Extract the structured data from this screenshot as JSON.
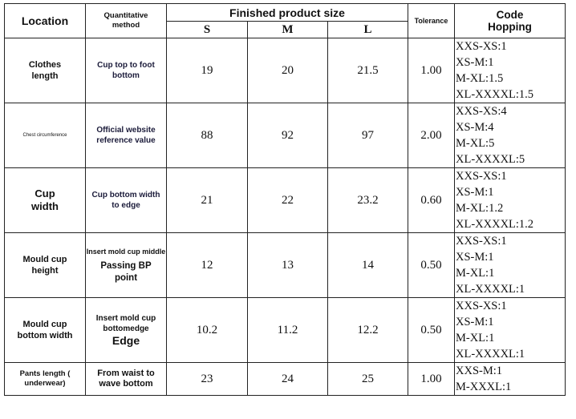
{
  "header": {
    "location": "Location",
    "method": "Quantitative\nmethod",
    "finished_product_size": "Finished product size",
    "sizes": [
      "S",
      "M",
      "L"
    ],
    "tolerance": "Tolerance",
    "code_hopping": "Code\nHopping"
  },
  "rows": [
    {
      "location": "Clothes\nlength",
      "method": "Cup top to foot\nbottom",
      "method_sub": "",
      "s": "19",
      "m": "20",
      "l": "21.5",
      "tolerance": "1.00",
      "code": [
        "XXS-XS:1",
        "XS-M:1",
        "M-XL:1.5",
        "XL-XXXXL:1.5"
      ]
    },
    {
      "location": "Chest circumference",
      "method": "Official website\nreference value",
      "method_sub": "",
      "s": "88",
      "m": "92",
      "l": "97",
      "tolerance": "2.00",
      "code": [
        "XXS-XS:4",
        "XS-M:4",
        "M-XL:5",
        "XL-XXXXL:5"
      ]
    },
    {
      "location": "Cup\nwidth",
      "method": "Cup bottom width\nto edge",
      "method_sub": "",
      "s": "21",
      "m": "22",
      "l": "23.2",
      "tolerance": "0.60",
      "code": [
        "XXS-XS:1",
        "XS-M:1",
        "M-XL:1.2",
        "XL-XXXXL:1.2"
      ]
    },
    {
      "location": "Mould cup\nheight",
      "method": "Insert mold cup middle",
      "method_sub": "Passing BP\npoint",
      "s": "12",
      "m": "13",
      "l": "14",
      "tolerance": "0.50",
      "code": [
        "XXS-XS:1",
        "XS-M:1",
        "M-XL:1",
        "XL-XXXXL:1"
      ]
    },
    {
      "location": "Mould cup\nbottom width",
      "method": "Insert mold cup\nbottomedge",
      "method_sub": "Edge",
      "s": "10.2",
      "m": "11.2",
      "l": "12.2",
      "tolerance": "0.50",
      "code": [
        "XXS-XS:1",
        "XS-M:1",
        "M-XL:1",
        "XL-XXXXL:1"
      ]
    },
    {
      "location": "Pants length (\nunderwear)",
      "method": "From waist to\nwave bottom",
      "method_sub": "",
      "s": "23",
      "m": "24",
      "l": "25",
      "tolerance": "1.00",
      "code": [
        "XXS-M:1",
        "M-XXXL:1"
      ]
    }
  ]
}
